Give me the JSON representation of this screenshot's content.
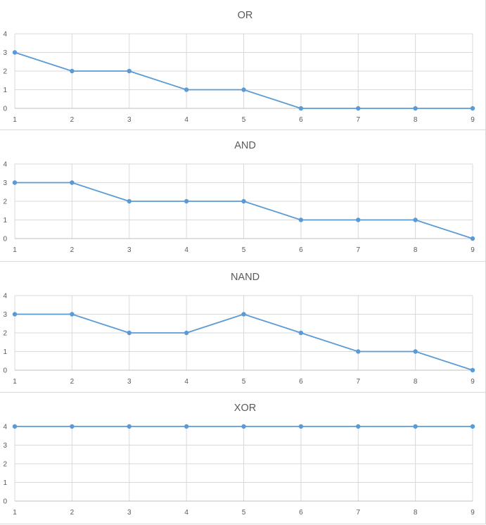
{
  "colors": {
    "series": "#5b9bd5"
  },
  "chart_data": [
    {
      "type": "line",
      "title": "OR",
      "x": [
        1,
        2,
        3,
        4,
        5,
        6,
        7,
        8,
        9
      ],
      "series": [
        {
          "values": [
            3,
            2,
            2,
            1,
            1,
            0,
            0,
            0,
            0
          ]
        }
      ],
      "xlim": [
        1,
        9
      ],
      "ylim": [
        0,
        4
      ],
      "yticks": [
        0,
        1,
        2,
        3,
        4
      ],
      "grid": true,
      "legend": "none"
    },
    {
      "type": "line",
      "title": "AND",
      "x": [
        1,
        2,
        3,
        4,
        5,
        6,
        7,
        8,
        9
      ],
      "series": [
        {
          "values": [
            3,
            3,
            2,
            2,
            2,
            1,
            1,
            1,
            0
          ]
        }
      ],
      "xlim": [
        1,
        9
      ],
      "ylim": [
        0,
        4
      ],
      "yticks": [
        0,
        1,
        2,
        3,
        4
      ],
      "grid": true,
      "legend": "none"
    },
    {
      "type": "line",
      "title": "NAND",
      "x": [
        1,
        2,
        3,
        4,
        5,
        6,
        7,
        8,
        9
      ],
      "series": [
        {
          "values": [
            3,
            3,
            2,
            2,
            3,
            2,
            1,
            1,
            0
          ]
        }
      ],
      "xlim": [
        1,
        9
      ],
      "ylim": [
        0,
        4
      ],
      "yticks": [
        0,
        1,
        2,
        3,
        4
      ],
      "grid": true,
      "legend": "none"
    },
    {
      "type": "line",
      "title": "XOR",
      "x": [
        1,
        2,
        3,
        4,
        5,
        6,
        7,
        8,
        9
      ],
      "series": [
        {
          "values": [
            4,
            4,
            4,
            4,
            4,
            4,
            4,
            4,
            4
          ]
        }
      ],
      "xlim": [
        1,
        9
      ],
      "ylim": [
        0,
        4
      ],
      "yticks": [
        0,
        1,
        2,
        3,
        4
      ],
      "grid": true,
      "legend": "none"
    }
  ]
}
